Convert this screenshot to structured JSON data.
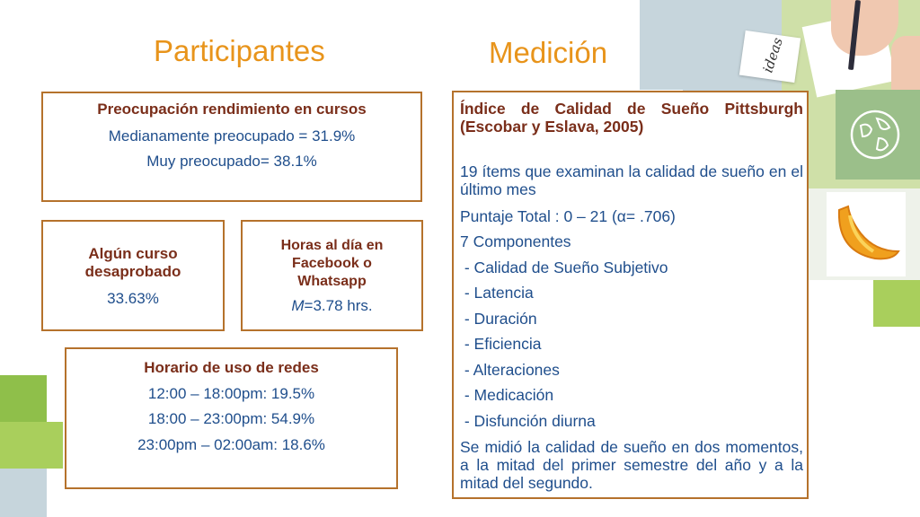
{
  "titles": {
    "left": "Participantes",
    "right": "Medición"
  },
  "box_worry": {
    "heading": "Preocupación rendimiento en cursos",
    "lines": [
      "Medianamente preocupado = 31.9%",
      "Muy preocupado= 38.1%"
    ]
  },
  "box_failed": {
    "heading_1": "Algún curso",
    "heading_2": "desaprobado",
    "value": "33.63%"
  },
  "box_hours": {
    "heading_1": "Horas al día en",
    "heading_2": "Facebook o",
    "heading_3": "Whatsapp",
    "value_italic": "M",
    "value_rest": "=3.78 hrs."
  },
  "box_schedule": {
    "heading": "Horario de uso de redes",
    "lines": [
      "12:00 – 18:00pm: 19.5%",
      "18:00 – 23:00pm: 54.9%",
      "23:00pm – 02:00am: 18.6%"
    ]
  },
  "measurement": {
    "index_title": "Índice de Calidad de Sueño Pittsburgh (Escobar y Eslava, 2005)",
    "items": "19 ítems que examinan la calidad de sueño en el último mes",
    "total": "Puntaje Total : 0 – 21  (α= .706)",
    "components_label": "7 Componentes",
    "components": [
      " - Calidad de Sueño Subjetivo",
      " - Latencia",
      " - Duración",
      " - Eficiencia",
      " - Alteraciones",
      " - Medicación",
      " - Disfunción diurna"
    ],
    "note": "Se midió la calidad de sueño en dos momentos, a la mitad del primer semestre del año y a la mitad del segundo."
  },
  "photo": {
    "sticky_note_text": "ideas"
  },
  "colors": {
    "title": "#e8941b",
    "heading": "#7a2e1a",
    "value": "#1f4e8c",
    "border": "#b5722c",
    "green": "#a9cf5c",
    "light_green": "#d9e8b0",
    "slate": "#c6d5dc"
  },
  "icons": [
    "globe-icon",
    "pencil-icon",
    "banana-icon"
  ]
}
